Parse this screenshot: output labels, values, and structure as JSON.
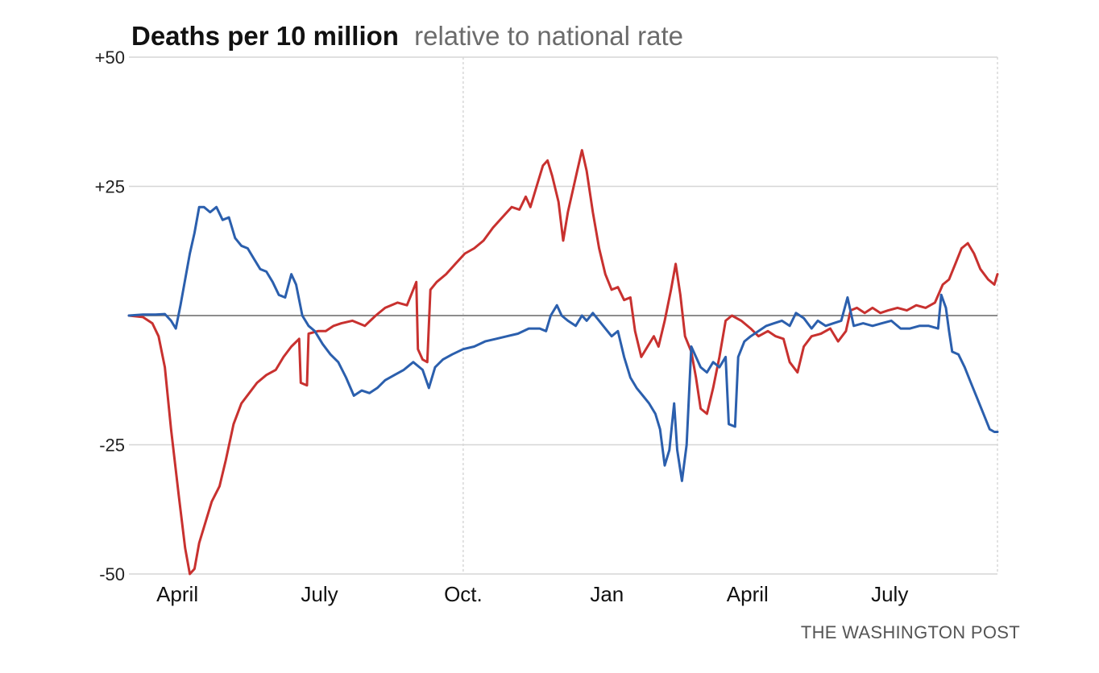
{
  "chart_data": {
    "type": "line",
    "title": "Deaths per 10 million",
    "subtitle": "relative to national rate",
    "credit": "THE WASHINGTON POST",
    "xlabel": "",
    "ylabel": "",
    "ylim": [
      -50,
      50
    ],
    "yticks": [
      50,
      25,
      -25,
      -50
    ],
    "ytick_labels": [
      "+50",
      "+25",
      "-25",
      "-50"
    ],
    "x_domain": [
      "2020-03-01",
      "2021-09-08"
    ],
    "xticks": [
      {
        "date": "2020-04-01",
        "label": "April"
      },
      {
        "date": "2020-07-01",
        "label": "July"
      },
      {
        "date": "2020-10-01",
        "label": "Oct."
      },
      {
        "date": "2021-01-01",
        "label": "Jan"
      },
      {
        "date": "2021-04-01",
        "label": "April"
      },
      {
        "date": "2021-07-01",
        "label": "July"
      }
    ],
    "dotted_gridlines_at": [
      "2020-10-01",
      "2021-09-08"
    ],
    "horizontal_grid": true,
    "baseline": 0,
    "series": [
      {
        "color": "#c8312f",
        "points": [
          [
            "2020-03-01",
            0
          ],
          [
            "2020-03-10",
            -0.3
          ],
          [
            "2020-03-16",
            -1.5
          ],
          [
            "2020-03-20",
            -4
          ],
          [
            "2020-03-24",
            -10
          ],
          [
            "2020-03-28",
            -22
          ],
          [
            "2020-04-02",
            -35
          ],
          [
            "2020-04-06",
            -45
          ],
          [
            "2020-04-09",
            -50
          ],
          [
            "2020-04-12",
            -49
          ],
          [
            "2020-04-15",
            -44
          ],
          [
            "2020-04-19",
            -40
          ],
          [
            "2020-04-23",
            -36
          ],
          [
            "2020-04-28",
            -33
          ],
          [
            "2020-05-02",
            -28
          ],
          [
            "2020-05-07",
            -21
          ],
          [
            "2020-05-12",
            -17
          ],
          [
            "2020-05-17",
            -15
          ],
          [
            "2020-05-22",
            -13
          ],
          [
            "2020-05-28",
            -11.5
          ],
          [
            "2020-06-03",
            -10.5
          ],
          [
            "2020-06-08",
            -8
          ],
          [
            "2020-06-13",
            -6
          ],
          [
            "2020-06-18",
            -4.5
          ],
          [
            "2020-06-19",
            -13
          ],
          [
            "2020-06-23",
            -13.5
          ],
          [
            "2020-06-24",
            -3.5
          ],
          [
            "2020-06-30",
            -3
          ],
          [
            "2020-07-05",
            -3
          ],
          [
            "2020-07-10",
            -2
          ],
          [
            "2020-07-15",
            -1.5
          ],
          [
            "2020-07-22",
            -1
          ],
          [
            "2020-07-30",
            -2
          ],
          [
            "2020-08-06",
            0
          ],
          [
            "2020-08-12",
            1.5
          ],
          [
            "2020-08-20",
            2.5
          ],
          [
            "2020-08-26",
            2
          ],
          [
            "2020-09-01",
            6.5
          ],
          [
            "2020-09-02",
            -6.5
          ],
          [
            "2020-09-05",
            -8.5
          ],
          [
            "2020-09-08",
            -9
          ],
          [
            "2020-09-10",
            5
          ],
          [
            "2020-09-14",
            6.5
          ],
          [
            "2020-09-20",
            8
          ],
          [
            "2020-09-26",
            10
          ],
          [
            "2020-10-02",
            12
          ],
          [
            "2020-10-08",
            13
          ],
          [
            "2020-10-14",
            14.5
          ],
          [
            "2020-10-20",
            17
          ],
          [
            "2020-10-26",
            19
          ],
          [
            "2020-11-01",
            21
          ],
          [
            "2020-11-06",
            20.5
          ],
          [
            "2020-11-10",
            23
          ],
          [
            "2020-11-13",
            21
          ],
          [
            "2020-11-17",
            25
          ],
          [
            "2020-11-21",
            29
          ],
          [
            "2020-11-24",
            30
          ],
          [
            "2020-11-27",
            27
          ],
          [
            "2020-12-01",
            22
          ],
          [
            "2020-12-04",
            14.5
          ],
          [
            "2020-12-07",
            20
          ],
          [
            "2020-12-10",
            24
          ],
          [
            "2020-12-13",
            28
          ],
          [
            "2020-12-16",
            32
          ],
          [
            "2020-12-19",
            28
          ],
          [
            "2020-12-23",
            20
          ],
          [
            "2020-12-27",
            13
          ],
          [
            "2020-12-31",
            8
          ],
          [
            "2021-01-04",
            5
          ],
          [
            "2021-01-08",
            5.5
          ],
          [
            "2021-01-12",
            3
          ],
          [
            "2021-01-16",
            3.5
          ],
          [
            "2021-01-19",
            -3
          ],
          [
            "2021-01-23",
            -8
          ],
          [
            "2021-01-27",
            -6
          ],
          [
            "2021-01-31",
            -4
          ],
          [
            "2021-02-03",
            -6
          ],
          [
            "2021-02-07",
            -1
          ],
          [
            "2021-02-11",
            5
          ],
          [
            "2021-02-14",
            10
          ],
          [
            "2021-02-17",
            4
          ],
          [
            "2021-02-20",
            -4
          ],
          [
            "2021-02-24",
            -7
          ],
          [
            "2021-02-27",
            -12
          ],
          [
            "2021-03-02",
            -18
          ],
          [
            "2021-03-06",
            -19
          ],
          [
            "2021-03-10",
            -14
          ],
          [
            "2021-03-14",
            -8
          ],
          [
            "2021-03-18",
            -1
          ],
          [
            "2021-03-22",
            0
          ],
          [
            "2021-03-28",
            -1
          ],
          [
            "2021-04-03",
            -2.5
          ],
          [
            "2021-04-08",
            -4
          ],
          [
            "2021-04-14",
            -3
          ],
          [
            "2021-04-19",
            -4
          ],
          [
            "2021-04-24",
            -4.5
          ],
          [
            "2021-04-28",
            -9
          ],
          [
            "2021-05-03",
            -11
          ],
          [
            "2021-05-07",
            -6
          ],
          [
            "2021-05-12",
            -4
          ],
          [
            "2021-05-18",
            -3.5
          ],
          [
            "2021-05-24",
            -2.5
          ],
          [
            "2021-05-29",
            -5
          ],
          [
            "2021-06-03",
            -3
          ],
          [
            "2021-06-06",
            1
          ],
          [
            "2021-06-10",
            1.5
          ],
          [
            "2021-06-15",
            0.5
          ],
          [
            "2021-06-20",
            1.5
          ],
          [
            "2021-06-25",
            0.5
          ],
          [
            "2021-06-30",
            1
          ],
          [
            "2021-07-06",
            1.5
          ],
          [
            "2021-07-12",
            1
          ],
          [
            "2021-07-18",
            2
          ],
          [
            "2021-07-24",
            1.5
          ],
          [
            "2021-07-30",
            2.5
          ],
          [
            "2021-08-04",
            6
          ],
          [
            "2021-08-08",
            7
          ],
          [
            "2021-08-12",
            10
          ],
          [
            "2021-08-16",
            13
          ],
          [
            "2021-08-20",
            14
          ],
          [
            "2021-08-24",
            12
          ],
          [
            "2021-08-28",
            9
          ],
          [
            "2021-09-02",
            7
          ],
          [
            "2021-09-06",
            6
          ],
          [
            "2021-09-08",
            8
          ]
        ]
      },
      {
        "color": "#2b5fad",
        "points": [
          [
            "2020-03-01",
            0
          ],
          [
            "2020-03-10",
            0.2
          ],
          [
            "2020-03-18",
            0.2
          ],
          [
            "2020-03-24",
            0.3
          ],
          [
            "2020-03-28",
            -1
          ],
          [
            "2020-03-31",
            -2.5
          ],
          [
            "2020-04-03",
            2
          ],
          [
            "2020-04-06",
            7
          ],
          [
            "2020-04-09",
            12
          ],
          [
            "2020-04-12",
            16
          ],
          [
            "2020-04-15",
            21
          ],
          [
            "2020-04-18",
            21
          ],
          [
            "2020-04-22",
            20
          ],
          [
            "2020-04-26",
            21
          ],
          [
            "2020-04-30",
            18.5
          ],
          [
            "2020-05-04",
            19
          ],
          [
            "2020-05-08",
            15
          ],
          [
            "2020-05-12",
            13.5
          ],
          [
            "2020-05-16",
            13
          ],
          [
            "2020-05-20",
            11
          ],
          [
            "2020-05-24",
            9
          ],
          [
            "2020-05-28",
            8.5
          ],
          [
            "2020-06-01",
            6.5
          ],
          [
            "2020-06-05",
            4
          ],
          [
            "2020-06-09",
            3.5
          ],
          [
            "2020-06-13",
            8
          ],
          [
            "2020-06-16",
            6
          ],
          [
            "2020-06-20",
            0
          ],
          [
            "2020-06-24",
            -2
          ],
          [
            "2020-06-28",
            -3
          ],
          [
            "2020-07-03",
            -5.5
          ],
          [
            "2020-07-08",
            -7.5
          ],
          [
            "2020-07-13",
            -9
          ],
          [
            "2020-07-18",
            -12
          ],
          [
            "2020-07-23",
            -15.5
          ],
          [
            "2020-07-28",
            -14.5
          ],
          [
            "2020-08-02",
            -15
          ],
          [
            "2020-08-07",
            -14
          ],
          [
            "2020-08-12",
            -12.5
          ],
          [
            "2020-08-18",
            -11.5
          ],
          [
            "2020-08-24",
            -10.5
          ],
          [
            "2020-08-30",
            -9
          ],
          [
            "2020-09-05",
            -10.5
          ],
          [
            "2020-09-09",
            -14
          ],
          [
            "2020-09-13",
            -10
          ],
          [
            "2020-09-18",
            -8.5
          ],
          [
            "2020-09-24",
            -7.5
          ],
          [
            "2020-10-01",
            -6.5
          ],
          [
            "2020-10-08",
            -6
          ],
          [
            "2020-10-15",
            -5
          ],
          [
            "2020-10-22",
            -4.5
          ],
          [
            "2020-10-29",
            -4
          ],
          [
            "2020-11-05",
            -3.5
          ],
          [
            "2020-11-12",
            -2.5
          ],
          [
            "2020-11-19",
            -2.5
          ],
          [
            "2020-11-23",
            -3
          ],
          [
            "2020-11-26",
            0
          ],
          [
            "2020-11-30",
            2
          ],
          [
            "2020-12-03",
            0
          ],
          [
            "2020-12-07",
            -1
          ],
          [
            "2020-12-12",
            -2
          ],
          [
            "2020-12-16",
            0
          ],
          [
            "2020-12-19",
            -1
          ],
          [
            "2020-12-23",
            0.5
          ],
          [
            "2020-12-27",
            -1
          ],
          [
            "2020-12-31",
            -2.5
          ],
          [
            "2021-01-04",
            -4
          ],
          [
            "2021-01-08",
            -3
          ],
          [
            "2021-01-12",
            -8
          ],
          [
            "2021-01-16",
            -12
          ],
          [
            "2021-01-20",
            -14
          ],
          [
            "2021-01-24",
            -15.5
          ],
          [
            "2021-01-28",
            -17
          ],
          [
            "2021-02-01",
            -19
          ],
          [
            "2021-02-04",
            -22
          ],
          [
            "2021-02-07",
            -29
          ],
          [
            "2021-02-10",
            -26
          ],
          [
            "2021-02-13",
            -17
          ],
          [
            "2021-02-15",
            -26
          ],
          [
            "2021-02-18",
            -32
          ],
          [
            "2021-02-21",
            -25
          ],
          [
            "2021-02-24",
            -6
          ],
          [
            "2021-02-27",
            -8
          ],
          [
            "2021-03-02",
            -10
          ],
          [
            "2021-03-06",
            -11
          ],
          [
            "2021-03-10",
            -9
          ],
          [
            "2021-03-14",
            -10
          ],
          [
            "2021-03-18",
            -8
          ],
          [
            "2021-03-20",
            -21
          ],
          [
            "2021-03-24",
            -21.5
          ],
          [
            "2021-03-26",
            -8
          ],
          [
            "2021-03-30",
            -5
          ],
          [
            "2021-04-03",
            -4
          ],
          [
            "2021-04-08",
            -3
          ],
          [
            "2021-04-13",
            -2
          ],
          [
            "2021-04-18",
            -1.5
          ],
          [
            "2021-04-23",
            -1
          ],
          [
            "2021-04-28",
            -2
          ],
          [
            "2021-05-02",
            0.5
          ],
          [
            "2021-05-07",
            -0.5
          ],
          [
            "2021-05-12",
            -2.5
          ],
          [
            "2021-05-16",
            -1
          ],
          [
            "2021-05-21",
            -2
          ],
          [
            "2021-05-26",
            -1.5
          ],
          [
            "2021-05-31",
            -1
          ],
          [
            "2021-06-04",
            3.5
          ],
          [
            "2021-06-08",
            -2
          ],
          [
            "2021-06-14",
            -1.5
          ],
          [
            "2021-06-20",
            -2
          ],
          [
            "2021-06-26",
            -1.5
          ],
          [
            "2021-07-02",
            -1
          ],
          [
            "2021-07-08",
            -2.5
          ],
          [
            "2021-07-14",
            -2.5
          ],
          [
            "2021-07-20",
            -2
          ],
          [
            "2021-07-26",
            -2
          ],
          [
            "2021-08-01",
            -2.5
          ],
          [
            "2021-08-03",
            4
          ],
          [
            "2021-08-06",
            1.5
          ],
          [
            "2021-08-08",
            -3
          ],
          [
            "2021-08-10",
            -7
          ],
          [
            "2021-08-14",
            -7.5
          ],
          [
            "2021-08-18",
            -10
          ],
          [
            "2021-08-22",
            -13
          ],
          [
            "2021-08-26",
            -16
          ],
          [
            "2021-08-30",
            -19
          ],
          [
            "2021-09-03",
            -22
          ],
          [
            "2021-09-06",
            -22.5
          ],
          [
            "2021-09-08",
            -22.5
          ]
        ]
      }
    ]
  }
}
